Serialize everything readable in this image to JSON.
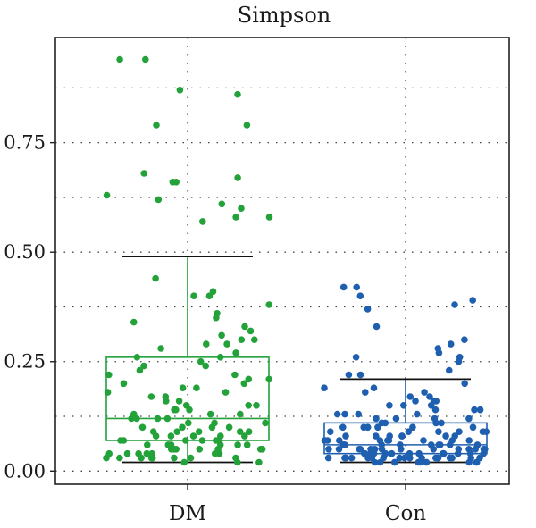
{
  "chart_data": {
    "type": "box-jitter",
    "title": "Simpson",
    "xlabel": "",
    "ylabel": "",
    "ylim": [
      -0.03,
      0.99
    ],
    "yticks": [
      0.0,
      0.25,
      0.5,
      0.75
    ],
    "ytick_labels": [
      "0.00",
      "0.25",
      "0.50",
      "0.75"
    ],
    "grid": true,
    "legend": "none",
    "categories": [
      "DM",
      "Con"
    ],
    "series": [
      {
        "name": "DM",
        "color": "#23a23a",
        "box": {
          "whisker_low": 0.02,
          "q1": 0.07,
          "median": 0.12,
          "q3": 0.26,
          "whisker_high": 0.49
        },
        "outliers": [
          0.94,
          0.94,
          0.87,
          0.86,
          0.79,
          0.79,
          0.68,
          0.67,
          0.66,
          0.66,
          0.63,
          0.62,
          0.61,
          0.6,
          0.58,
          0.58,
          0.57
        ],
        "points": [
          0.41,
          0.44,
          0.4,
          0.38,
          0.36,
          0.35,
          0.34,
          0.32,
          0.31,
          0.3,
          0.29,
          0.28,
          0.27,
          0.26,
          0.25,
          0.24,
          0.23,
          0.22,
          0.21,
          0.2,
          0.2,
          0.19,
          0.18,
          0.17,
          0.17,
          0.16,
          0.15,
          0.15,
          0.14,
          0.14,
          0.13,
          0.13,
          0.12,
          0.12,
          0.12,
          0.11,
          0.11,
          0.1,
          0.1,
          0.1,
          0.09,
          0.09,
          0.09,
          0.08,
          0.08,
          0.08,
          0.08,
          0.07,
          0.07,
          0.07,
          0.07,
          0.06,
          0.06,
          0.06,
          0.06,
          0.05,
          0.05,
          0.05,
          0.05,
          0.04,
          0.04,
          0.04,
          0.04,
          0.03,
          0.03,
          0.03,
          0.03,
          0.03,
          0.02,
          0.02,
          0.4,
          0.33,
          0.29,
          0.26,
          0.22,
          0.19,
          0.16,
          0.14,
          0.11,
          0.09,
          0.07,
          0.05,
          0.04,
          0.03,
          0.3,
          0.24,
          0.18,
          0.13,
          0.1,
          0.08,
          0.06,
          0.05,
          0.04,
          0.03,
          0.21,
          0.15,
          0.12,
          0.09,
          0.07,
          0.06,
          0.05,
          0.04,
          0.03,
          0.02
        ]
      },
      {
        "name": "Con",
        "color": "#1f5fb0",
        "box": {
          "whisker_low": 0.02,
          "q1": 0.04,
          "median": 0.06,
          "q3": 0.11,
          "whisker_high": 0.21
        },
        "outliers": [
          0.42,
          0.42,
          0.4,
          0.39,
          0.38,
          0.37,
          0.33,
          0.3,
          0.29,
          0.28,
          0.27,
          0.26,
          0.26,
          0.25,
          0.23,
          0.22,
          0.22
        ],
        "points": [
          0.2,
          0.19,
          0.19,
          0.18,
          0.17,
          0.17,
          0.16,
          0.16,
          0.15,
          0.15,
          0.14,
          0.14,
          0.13,
          0.13,
          0.13,
          0.12,
          0.12,
          0.12,
          0.11,
          0.11,
          0.11,
          0.1,
          0.1,
          0.1,
          0.1,
          0.09,
          0.09,
          0.09,
          0.09,
          0.08,
          0.08,
          0.08,
          0.08,
          0.08,
          0.07,
          0.07,
          0.07,
          0.07,
          0.07,
          0.07,
          0.06,
          0.06,
          0.06,
          0.06,
          0.06,
          0.06,
          0.06,
          0.05,
          0.05,
          0.05,
          0.05,
          0.05,
          0.05,
          0.05,
          0.05,
          0.05,
          0.04,
          0.04,
          0.04,
          0.04,
          0.04,
          0.04,
          0.04,
          0.04,
          0.04,
          0.04,
          0.03,
          0.03,
          0.03,
          0.03,
          0.03,
          0.03,
          0.03,
          0.03,
          0.03,
          0.03,
          0.03,
          0.03,
          0.02,
          0.02,
          0.02,
          0.02,
          0.02,
          0.02,
          0.02,
          0.02,
          0.02,
          0.18,
          0.15,
          0.12,
          0.1,
          0.09,
          0.08,
          0.07,
          0.06,
          0.05,
          0.05,
          0.04,
          0.04,
          0.03,
          0.03,
          0.03,
          0.14,
          0.11,
          0.09,
          0.07,
          0.06,
          0.05,
          0.04,
          0.04,
          0.03,
          0.03,
          0.02,
          0.16,
          0.13,
          0.1,
          0.08,
          0.07,
          0.06,
          0.05,
          0.05,
          0.04,
          0.03,
          0.03,
          0.02
        ]
      }
    ]
  }
}
